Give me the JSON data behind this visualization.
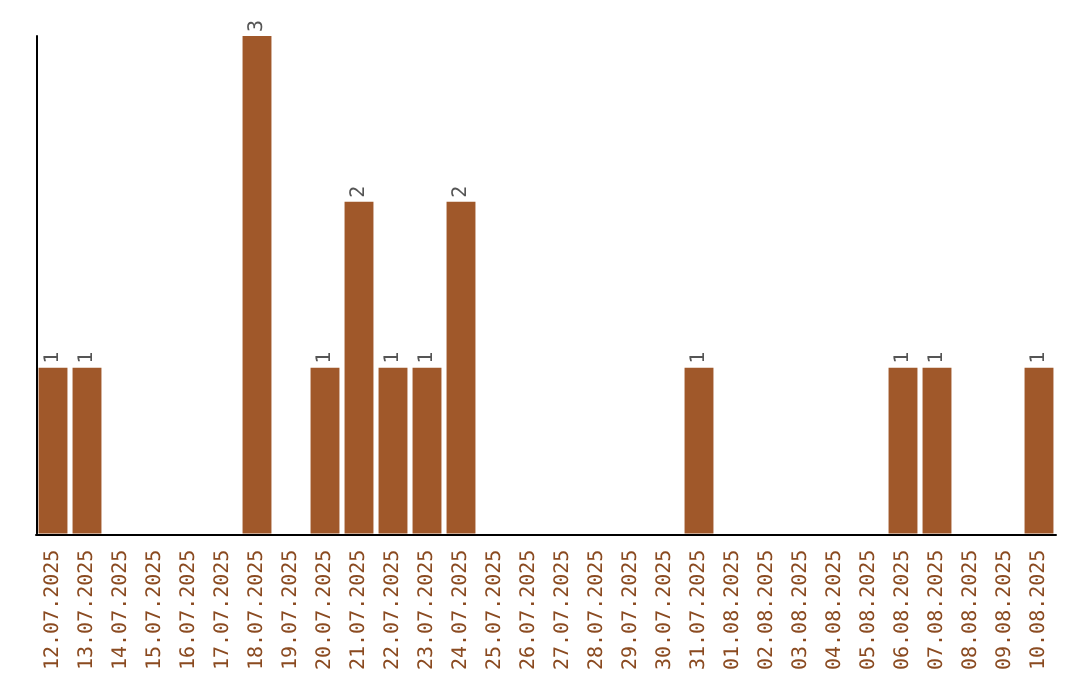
{
  "chart_data": {
    "type": "bar",
    "categories": [
      "12.07.2025",
      "13.07.2025",
      "14.07.2025",
      "15.07.2025",
      "16.07.2025",
      "17.07.2025",
      "18.07.2025",
      "19.07.2025",
      "20.07.2025",
      "21.07.2025",
      "22.07.2025",
      "23.07.2025",
      "24.07.2025",
      "25.07.2025",
      "26.07.2025",
      "27.07.2025",
      "28.07.2025",
      "29.07.2025",
      "30.07.2025",
      "31.07.2025",
      "01.08.2025",
      "02.08.2025",
      "03.08.2025",
      "04.08.2025",
      "05.08.2025",
      "06.08.2025",
      "07.08.2025",
      "08.08.2025",
      "09.08.2025",
      "10.08.2025"
    ],
    "values": [
      1,
      1,
      0,
      0,
      0,
      0,
      3,
      0,
      1,
      2,
      1,
      1,
      2,
      0,
      0,
      0,
      0,
      0,
      0,
      1,
      0,
      0,
      0,
      0,
      0,
      1,
      1,
      0,
      0,
      1
    ],
    "value_labels": [
      "1",
      "1",
      null,
      null,
      null,
      null,
      "3",
      null,
      "1",
      "2",
      "1",
      "1",
      "2",
      null,
      null,
      null,
      null,
      null,
      null,
      "1",
      null,
      null,
      null,
      null,
      null,
      "1",
      "1",
      null,
      null,
      "1"
    ],
    "color": "#a0582a",
    "tick_labels": "x"
  }
}
